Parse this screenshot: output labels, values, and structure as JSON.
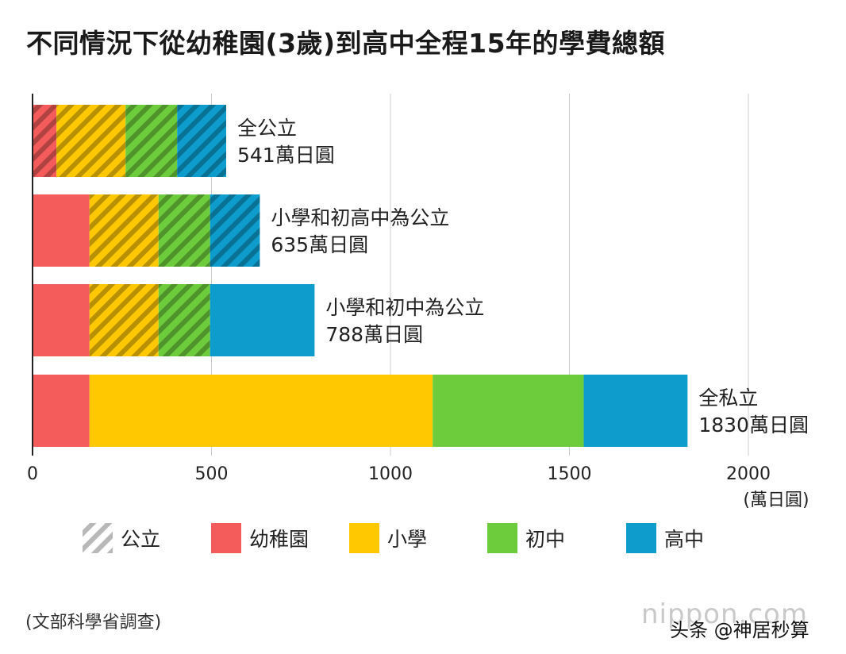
{
  "title": "不同情況下從幼稚園(3歲)到高中全程15年的學費總額",
  "source": "(文部科學省調查)",
  "watermark": {
    "site": "nippon.com",
    "credit": "头条 @神居秒算"
  },
  "colors": {
    "kindergarten": "#f45b5b",
    "elementary": "#ffc800",
    "junior_high": "#6dcc3c",
    "high_school": "#0d9ccc",
    "public_hatch": "#9a9a9a"
  },
  "chart_data": {
    "type": "bar",
    "orientation": "horizontal",
    "stacked": true,
    "title": "不同情況下從幼稚園(3歲)到高中全程15年的學費總額",
    "xlabel": "(萬日圓)",
    "ylabel": "",
    "xlim": [
      0,
      2000
    ],
    "xticks": [
      0,
      500,
      1000,
      1500,
      2000
    ],
    "grid": true,
    "legend_position": "bottom",
    "categories": [
      {
        "label": "全公立",
        "total": "541萬日圓"
      },
      {
        "label": "小學和初高中為公立",
        "total": "635萬日圓"
      },
      {
        "label": "小學和初中為公立",
        "total": "788萬日圓"
      },
      {
        "label": "全私立",
        "total": "1830萬日圓"
      }
    ],
    "series": [
      {
        "name": "幼稚園",
        "color_key": "kindergarten",
        "values": [
          67,
          159,
          159,
          159
        ],
        "public": [
          true,
          false,
          false,
          false
        ]
      },
      {
        "name": "小學",
        "color_key": "elementary",
        "values": [
          193,
          193,
          193,
          959
        ],
        "public": [
          true,
          true,
          true,
          false
        ]
      },
      {
        "name": "初中",
        "color_key": "junior_high",
        "values": [
          144,
          144,
          144,
          422
        ],
        "public": [
          true,
          true,
          true,
          false
        ]
      },
      {
        "name": "高中",
        "color_key": "high_school",
        "values": [
          137,
          139,
          292,
          290
        ],
        "public": [
          true,
          true,
          false,
          false
        ]
      }
    ],
    "legend": [
      {
        "name": "公立",
        "color_key": "public_hatch",
        "pattern": "hatch"
      },
      {
        "name": "幼稚園",
        "color_key": "kindergarten"
      },
      {
        "name": "小學",
        "color_key": "elementary"
      },
      {
        "name": "初中",
        "color_key": "junior_high"
      },
      {
        "name": "高中",
        "color_key": "high_school"
      }
    ]
  }
}
